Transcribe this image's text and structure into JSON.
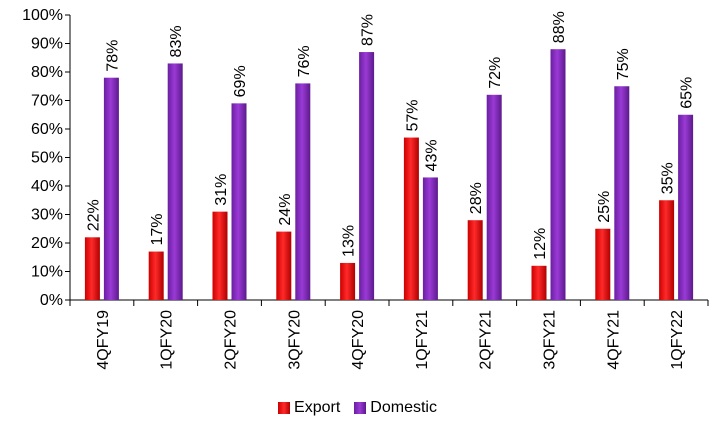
{
  "chart_data": {
    "type": "bar",
    "title": "",
    "xlabel": "",
    "ylabel": "",
    "ylim": [
      0,
      100
    ],
    "y_ticks": [
      "0%",
      "10%",
      "20%",
      "30%",
      "40%",
      "50%",
      "60%",
      "70%",
      "80%",
      "90%",
      "100%"
    ],
    "grid": false,
    "legend_position": "bottom",
    "categories": [
      "4QFY19",
      "1QFY20",
      "2QFY20",
      "3QFY20",
      "4QFY20",
      "1QFY21",
      "2QFY21",
      "3QFY21",
      "4QFY21",
      "1QFY22"
    ],
    "series": [
      {
        "name": "Export",
        "color": "#ff0000",
        "values": [
          22,
          17,
          31,
          24,
          13,
          57,
          28,
          12,
          25,
          35
        ]
      },
      {
        "name": "Domestic",
        "color": "#9933cc",
        "values": [
          78,
          83,
          69,
          76,
          87,
          43,
          72,
          88,
          75,
          65
        ]
      }
    ],
    "label_suffix": "%"
  }
}
